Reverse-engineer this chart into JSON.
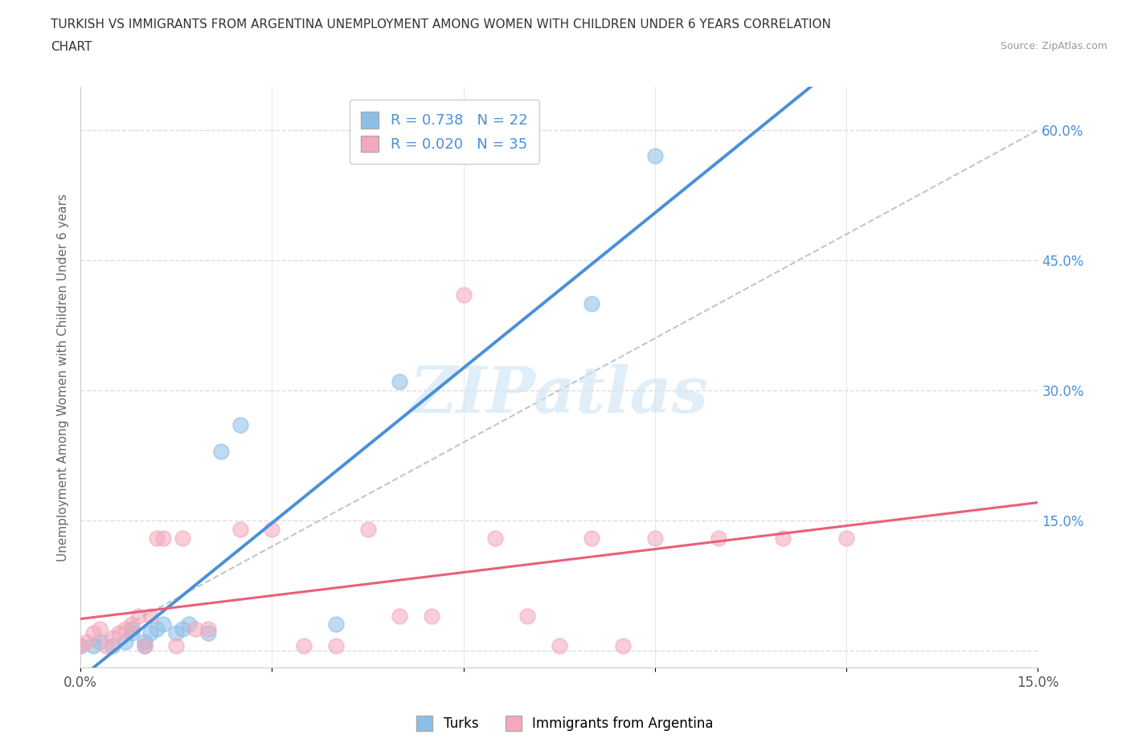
{
  "title_line1": "TURKISH VS IMMIGRANTS FROM ARGENTINA UNEMPLOYMENT AMONG WOMEN WITH CHILDREN UNDER 6 YEARS CORRELATION",
  "title_line2": "CHART",
  "source": "Source: ZipAtlas.com",
  "ylabel": "Unemployment Among Women with Children Under 6 years",
  "xlim": [
    0.0,
    0.15
  ],
  "ylim": [
    -0.02,
    0.65
  ],
  "ytick_vals": [
    0.0,
    0.15,
    0.3,
    0.45,
    0.6
  ],
  "ytick_labels": [
    "",
    "15.0%",
    "30.0%",
    "45.0%",
    "60.0%"
  ],
  "xtick_vals": [
    0.0,
    0.03,
    0.06,
    0.09,
    0.12,
    0.15
  ],
  "xtick_labels": [
    "0.0%",
    "",
    "",
    "",
    "",
    "15.0%"
  ],
  "blue_scatter_color": "#8bbfe8",
  "pink_scatter_color": "#f4a8bb",
  "blue_line_color": "#4a90d9",
  "pink_line_color": "#e8607a",
  "diagonal_color": "#bbbbbb",
  "R_blue": 0.738,
  "N_blue": 22,
  "R_pink": 0.02,
  "N_pink": 35,
  "legend_label_blue": "Turks",
  "legend_label_pink": "Immigrants from Argentina",
  "watermark_text": "ZIPatlas",
  "turks_x": [
    0.0,
    0.002,
    0.003,
    0.005,
    0.007,
    0.008,
    0.008,
    0.01,
    0.01,
    0.011,
    0.012,
    0.013,
    0.015,
    0.016,
    0.017,
    0.02,
    0.022,
    0.025,
    0.04,
    0.05,
    0.08,
    0.09
  ],
  "turks_y": [
    0.005,
    0.005,
    0.01,
    0.005,
    0.01,
    0.02,
    0.025,
    0.005,
    0.01,
    0.02,
    0.025,
    0.03,
    0.02,
    0.025,
    0.03,
    0.02,
    0.23,
    0.26,
    0.03,
    0.31,
    0.4,
    0.57
  ],
  "argentina_x": [
    0.0,
    0.001,
    0.002,
    0.003,
    0.004,
    0.005,
    0.006,
    0.007,
    0.008,
    0.009,
    0.01,
    0.011,
    0.012,
    0.013,
    0.015,
    0.016,
    0.018,
    0.02,
    0.025,
    0.03,
    0.035,
    0.04,
    0.045,
    0.05,
    0.055,
    0.06,
    0.065,
    0.07,
    0.075,
    0.08,
    0.085,
    0.09,
    0.1,
    0.11,
    0.12
  ],
  "argentina_y": [
    0.005,
    0.01,
    0.02,
    0.025,
    0.005,
    0.015,
    0.02,
    0.025,
    0.03,
    0.04,
    0.005,
    0.04,
    0.13,
    0.13,
    0.005,
    0.13,
    0.025,
    0.025,
    0.14,
    0.14,
    0.005,
    0.005,
    0.14,
    0.04,
    0.04,
    0.41,
    0.13,
    0.04,
    0.005,
    0.13,
    0.005,
    0.13,
    0.13,
    0.13,
    0.13
  ],
  "background_color": "#ffffff",
  "grid_color": "#dddddd"
}
